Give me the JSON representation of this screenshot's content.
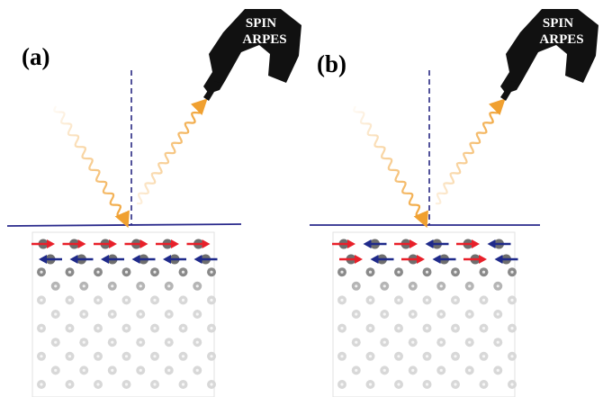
{
  "panels": [
    {
      "label": "(a)",
      "detector_label_line1": "SPIN",
      "detector_label_line2": "ARPES",
      "spin_rows": [
        {
          "directions": [
            "right",
            "right",
            "right",
            "right",
            "right",
            "right"
          ]
        },
        {
          "directions": [
            "left",
            "left",
            "left",
            "left",
            "left",
            "left"
          ]
        }
      ]
    },
    {
      "label": "(b)",
      "detector_label_line1": "SPIN",
      "detector_label_line2": "ARPES",
      "spin_rows": [
        {
          "directions": [
            "right",
            "left",
            "right",
            "left",
            "right",
            "left"
          ]
        },
        {
          "directions": [
            "right",
            "left",
            "right",
            "left",
            "right",
            "left"
          ]
        }
      ]
    }
  ],
  "colors": {
    "spin_right": "#e8202a",
    "spin_left": "#1f2a8a",
    "surface_line": "#2a2a8c",
    "normal_line": "#1a1a7a",
    "photon": "#f0a030",
    "detector": "#111111",
    "atom_top": "#6e6e6e",
    "atom_deep": "#d8d8d8"
  }
}
